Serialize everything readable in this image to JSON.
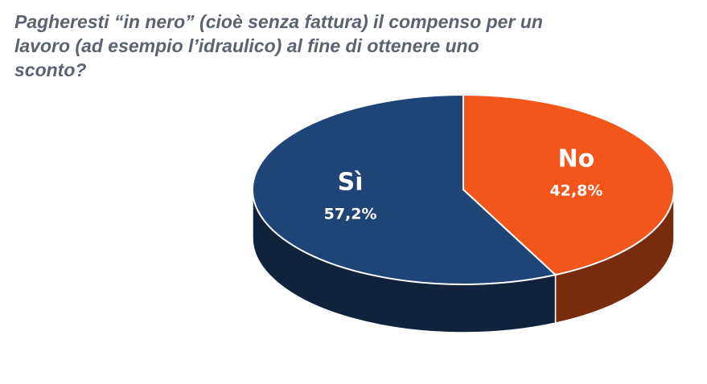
{
  "chart_data": {
    "type": "pie3d",
    "title": "Pagheresti “in nero” (cioè senza fattura) il compenso per un lavoro (ad esempio l’idraulico) al fine di ottenere uno sconto?",
    "categories": [
      "Sì",
      "No"
    ],
    "values": [
      57.2,
      42.8
    ],
    "value_labels": [
      "57,2%",
      "42,8%"
    ],
    "colors": [
      "#1f4477",
      "#f2561a"
    ]
  }
}
